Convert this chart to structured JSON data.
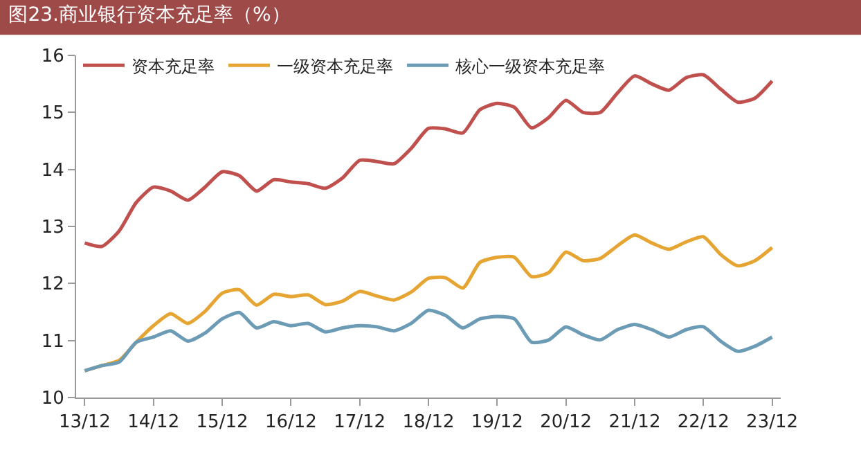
{
  "chart_data": {
    "type": "line",
    "title": "图23.商业银行资本充足率（%）",
    "categories": [
      "13/12",
      null,
      null,
      null,
      "14/12",
      null,
      null,
      null,
      "15/12",
      null,
      null,
      null,
      "16/12",
      null,
      null,
      null,
      "17/12",
      null,
      null,
      null,
      "18/12",
      null,
      null,
      null,
      "19/12",
      null,
      null,
      null,
      "20/12",
      null,
      null,
      null,
      "21/12",
      null,
      null,
      null,
      "22/12",
      null,
      null,
      null,
      "23/12"
    ],
    "series": [
      {
        "name": "资本充足率",
        "color": "#c0504d",
        "values": [
          12.71,
          12.65,
          12.92,
          13.42,
          13.69,
          13.62,
          13.46,
          13.69,
          13.96,
          13.89,
          13.62,
          13.82,
          13.78,
          13.75,
          13.67,
          13.85,
          14.16,
          14.14,
          14.1,
          14.37,
          14.72,
          14.71,
          14.64,
          15.05,
          15.16,
          15.09,
          14.73,
          14.91,
          15.21,
          15.0,
          15.0,
          15.34,
          15.64,
          15.5,
          15.39,
          15.61,
          15.66,
          15.41,
          15.18,
          15.25,
          15.55
        ]
      },
      {
        "name": "一级资本充足率",
        "color": "#e6a532",
        "values": [
          10.47,
          10.56,
          10.65,
          10.97,
          11.26,
          11.47,
          11.3,
          11.51,
          11.83,
          11.89,
          11.62,
          11.81,
          11.77,
          11.8,
          11.63,
          11.69,
          11.86,
          11.78,
          11.71,
          11.85,
          12.09,
          12.1,
          11.92,
          12.37,
          12.46,
          12.46,
          12.12,
          12.19,
          12.55,
          12.4,
          12.44,
          12.66,
          12.85,
          12.71,
          12.6,
          12.73,
          12.82,
          12.51,
          12.31,
          12.4,
          12.63
        ]
      },
      {
        "name": "核心一级资本充足率",
        "color": "#6b9bb5",
        "values": [
          10.47,
          10.56,
          10.62,
          10.97,
          11.06,
          11.17,
          10.99,
          11.13,
          11.38,
          11.49,
          11.22,
          11.33,
          11.26,
          11.3,
          11.15,
          11.22,
          11.26,
          11.24,
          11.17,
          11.3,
          11.53,
          11.44,
          11.22,
          11.38,
          11.42,
          11.38,
          10.97,
          11.01,
          11.24,
          11.1,
          11.01,
          11.19,
          11.28,
          11.19,
          11.06,
          11.19,
          11.24,
          10.99,
          10.81,
          10.9,
          11.06
        ]
      }
    ],
    "ylim": [
      10,
      16
    ],
    "yticks": [
      10,
      11,
      12,
      13,
      14,
      15,
      16
    ],
    "legend": "top left",
    "marker": "none",
    "line_style": "solid"
  }
}
